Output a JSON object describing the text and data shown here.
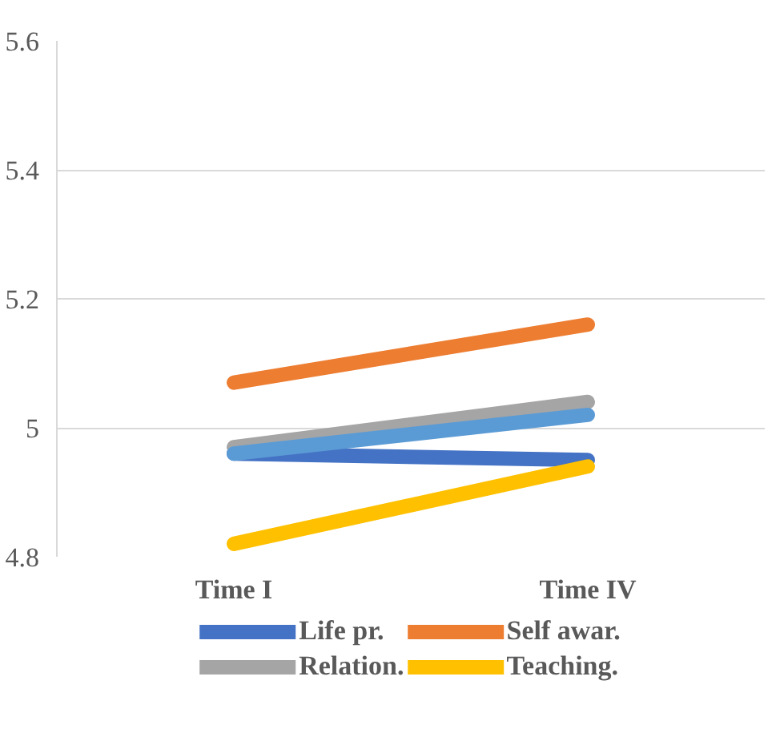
{
  "chart_data": {
    "type": "line",
    "categories": [
      "Time I",
      "Time IV"
    ],
    "series": [
      {
        "name": "Life pr.",
        "color": "#4472c4",
        "values": [
          4.96,
          4.95
        ]
      },
      {
        "name": "Self awar.",
        "color": "#ed7d31",
        "values": [
          5.07,
          5.16
        ]
      },
      {
        "name": "Relation.",
        "color": "#a5a5a5",
        "values": [
          4.97,
          5.04
        ]
      },
      {
        "name": "Teaching.",
        "color": "#ffc000",
        "values": [
          4.82,
          4.94
        ]
      },
      {
        "color": "#5b9bd5",
        "values": [
          4.96,
          5.02
        ]
      }
    ],
    "ylim": [
      4.8,
      5.6
    ],
    "yticks": [
      4.8,
      {
        "value": 5.0,
        "label": "5"
      },
      5.2,
      5.4,
      5.6
    ],
    "grid": "y",
    "legend": "bottom",
    "marker": "none",
    "line_style": "solid"
  }
}
